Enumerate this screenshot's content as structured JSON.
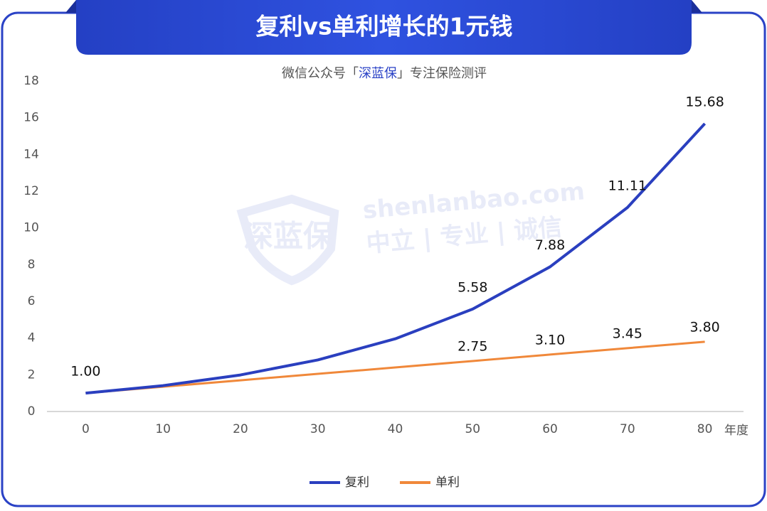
{
  "chart_data": {
    "type": "line",
    "title": "复利vs单利增长的1元钱",
    "subtitle": [
      "微信公众号「",
      "深蓝保",
      "」专注保险测评"
    ],
    "watermark": [
      "深蓝保",
      "shenlanbao.com",
      "中立 | 专业 | 诚信"
    ],
    "x_label": "年度",
    "x": [
      0,
      10,
      20,
      30,
      40,
      50,
      60,
      70,
      80
    ],
    "xlim": [
      -5,
      85
    ],
    "xticks": [
      0,
      10,
      20,
      30,
      40,
      50,
      60,
      70,
      80
    ],
    "ylim": [
      0,
      18
    ],
    "yticks": [
      0,
      2,
      4,
      6,
      8,
      10,
      12,
      14,
      16,
      18
    ],
    "grid": false,
    "legend": "bottom",
    "series": [
      {
        "name": "复利",
        "color": "#2a3fbf",
        "values": [
          1.0,
          1.41,
          1.99,
          2.81,
          3.96,
          5.58,
          7.88,
          11.11,
          15.68
        ],
        "value_labels": [
          "1.00",
          null,
          null,
          null,
          null,
          "5.58",
          "7.88",
          "11.11",
          "15.68"
        ]
      },
      {
        "name": "单利",
        "color": "#f0883a",
        "values": [
          1.0,
          1.35,
          1.7,
          2.05,
          2.4,
          2.75,
          3.1,
          3.45,
          3.8
        ],
        "value_labels": [
          null,
          null,
          null,
          null,
          null,
          "2.75",
          "3.10",
          "3.45",
          "3.80"
        ]
      }
    ]
  }
}
